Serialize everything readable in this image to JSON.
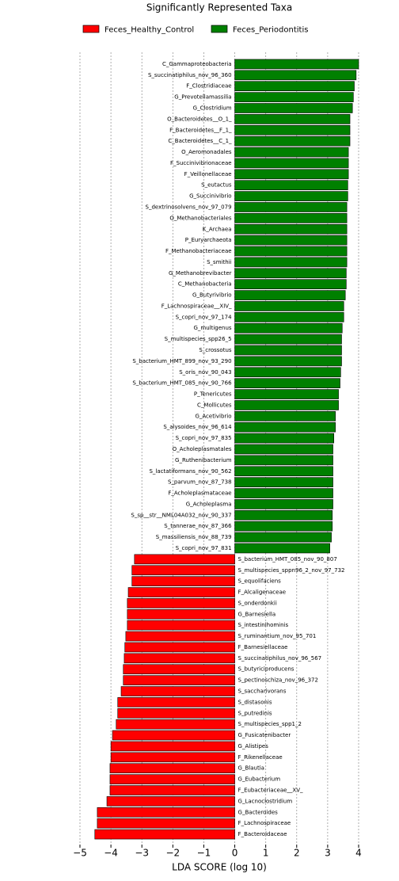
{
  "chart_data": {
    "type": "bar",
    "orientation": "horizontal",
    "title": "Significantly Represented Taxa",
    "x_label": "LDA SCORE (log 10)",
    "categories": [
      "C_Gammaproteobacteria",
      "S_succinatiphilus_nov_96_360",
      "F_Clostridiaceae",
      "G_Prevotellamassilia",
      "G_Clostridium",
      "O_Bacteroidetes__O_1_",
      "F_Bacteroidetes__F_1_",
      "C_Bacteroidetes__C_1_",
      "O_Aeromonadales",
      "F_Succinivibrionaceae",
      "F_Veillonellaceae",
      "S_eutactus",
      "G_Succinivibrio",
      "S_dextrinosolvens_nov_97_079",
      "O_Methanobacteriales",
      "K_Archaea",
      "P_Euryarchaeota",
      "F_Methanobacteriaceae",
      "S_smithii",
      "G_Methanobrevibacter",
      "C_Methanobacteria",
      "G_Butyrivibrio",
      "F_Lachnospiraceae__XIV_",
      "S_copri_nov_97_174",
      "G_multigenus",
      "S_multispecies_spp26_5",
      "S_crossotus",
      "S_bacterium_HMT_899_nov_93_290",
      "S_oris_nov_90_043",
      "S_bacterium_HMT_085_nov_90_766",
      "P_Tenericutes",
      "C_Mollicutes",
      "G_Acetivibrio",
      "S_alysoides_nov_96_614",
      "S_copri_nov_97_835",
      "O_Acholeplasmatales",
      "G_Ruthenibacterium",
      "S_lactatiformans_nov_90_562",
      "S_parvum_nov_87_738",
      "F_Acholeplasmataceae",
      "G_Acholeplasma",
      "S_sp__str__NML04A032_nov_90_337",
      "S_tannerae_nov_87_366",
      "S_massiliensis_nov_88_739",
      "S_copri_nov_97_831",
      "S_bacterium_HMT_085_nov_90_807",
      "S_multispecies_sppn96_2_nov_97_732",
      "S_equolifaciens",
      "F_Alcaligenaceae",
      "S_onderdonkii",
      "G_Barnesiella",
      "S_intestinihominis",
      "S_ruminantium_nov_95_701",
      "F_Barnesiellaceae",
      "S_succinatiphilus_nov_96_567",
      "S_butyriciproducens",
      "S_pectinoschiza_nov_96_372",
      "S_saccharivorans",
      "S_distasonis",
      "S_putredinis",
      "S_multispecies_spp1_2",
      "G_Fusicatenibacter",
      "G_Alistipes",
      "F_Rikenellaceae",
      "G_Blautia",
      "G_Eubacterium",
      "F_Eubacteriaceae__XV_",
      "G_Lacnoclostridium",
      "G_Bacteroides",
      "F_Lachnospiraceae",
      "F_Bacteroidaceae"
    ],
    "series": [
      {
        "name": "Feces_Healthy_Control",
        "color": "#ff0000",
        "values": [
          null,
          null,
          null,
          null,
          null,
          null,
          null,
          null,
          null,
          null,
          null,
          null,
          null,
          null,
          null,
          null,
          null,
          null,
          null,
          null,
          null,
          null,
          null,
          null,
          null,
          null,
          null,
          null,
          null,
          null,
          null,
          null,
          null,
          null,
          null,
          null,
          null,
          null,
          null,
          null,
          null,
          null,
          null,
          null,
          null,
          -3.24,
          -3.32,
          -3.32,
          -3.44,
          -3.47,
          -3.47,
          -3.47,
          -3.52,
          -3.55,
          -3.57,
          -3.6,
          -3.6,
          -3.67,
          -3.78,
          -3.78,
          -3.83,
          -3.95,
          -4.0,
          -4.0,
          -4.03,
          -4.03,
          -4.03,
          -4.13,
          -4.44,
          -4.44,
          -4.52
        ]
      },
      {
        "name": "Feces_Periodontitis",
        "color": "#008000",
        "values": [
          4.0,
          3.92,
          3.86,
          3.83,
          3.8,
          3.72,
          3.72,
          3.72,
          3.67,
          3.67,
          3.67,
          3.65,
          3.65,
          3.62,
          3.62,
          3.62,
          3.62,
          3.62,
          3.62,
          3.6,
          3.6,
          3.57,
          3.52,
          3.52,
          3.47,
          3.45,
          3.45,
          3.45,
          3.42,
          3.4,
          3.35,
          3.35,
          3.25,
          3.25,
          3.2,
          3.17,
          3.17,
          3.17,
          3.17,
          3.17,
          3.17,
          3.15,
          3.15,
          3.12,
          3.07,
          null,
          null,
          null,
          null,
          null,
          null,
          null,
          null,
          null,
          null,
          null,
          null,
          null,
          null,
          null,
          null,
          null,
          null,
          null,
          null,
          null,
          null,
          null,
          null,
          null,
          null
        ]
      }
    ],
    "xlim": [
      -5,
      4
    ],
    "xticks": [
      {
        "value": -5,
        "label": "−5"
      },
      {
        "value": -4,
        "label": "−4"
      },
      {
        "value": -3,
        "label": "−3"
      },
      {
        "value": -2,
        "label": "−2"
      },
      {
        "value": -1,
        "label": "−1"
      },
      0,
      1,
      2,
      3,
      4
    ],
    "grid": true
  }
}
